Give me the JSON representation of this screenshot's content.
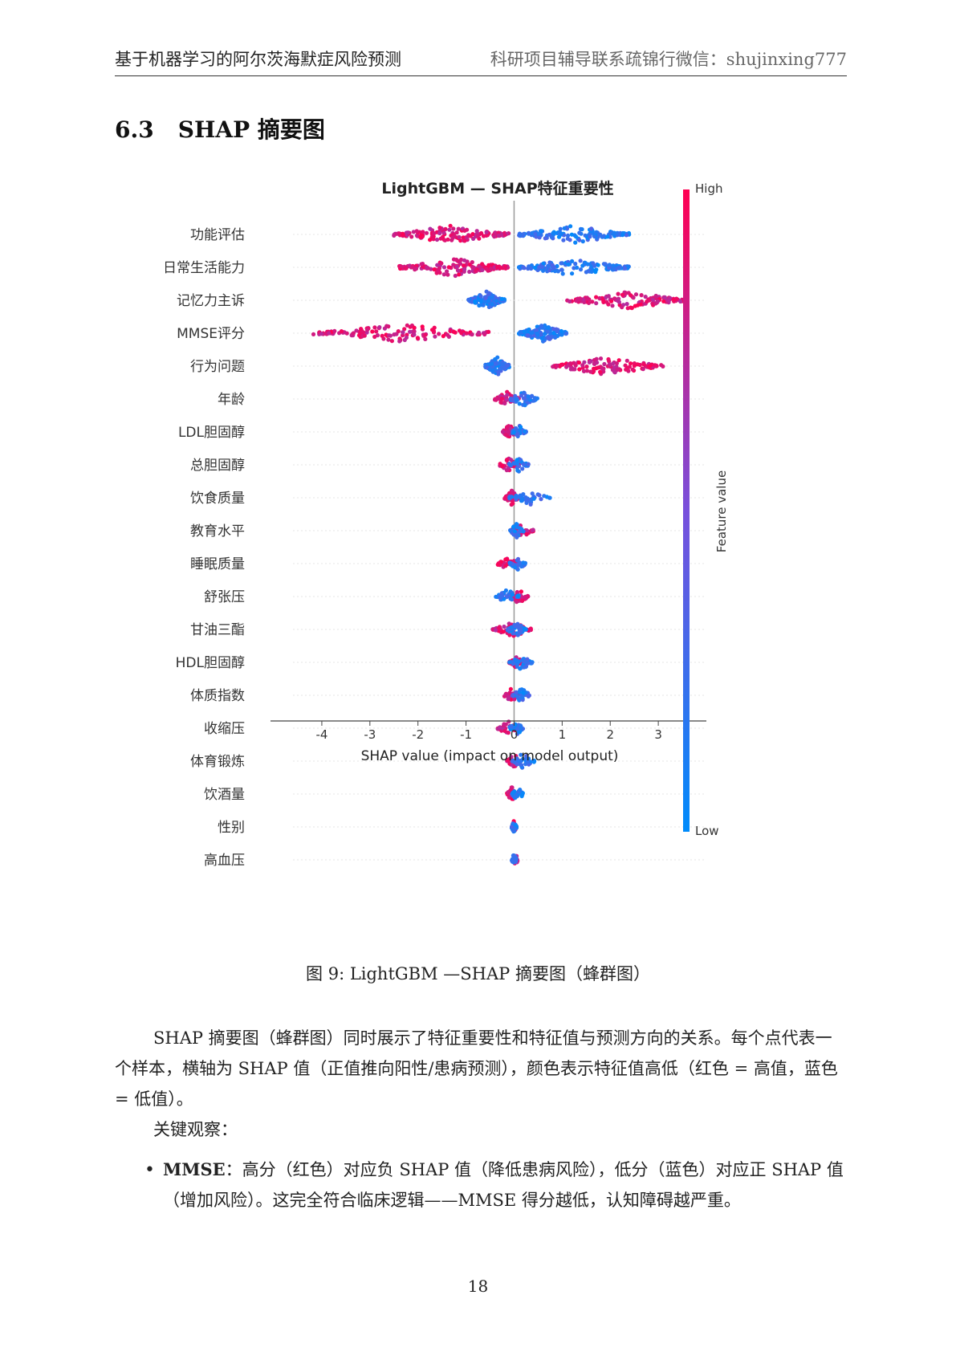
{
  "header": {
    "left": "基于机器学习的阿尔茨海默症风险预测",
    "right": "科研项目辅导联系疏锦行微信：shujinxing777"
  },
  "section": {
    "number": "6.3",
    "title": "SHAP 摘要图"
  },
  "chart_data": {
    "type": "scatter",
    "subtype": "beeswarm",
    "title": "LightGBM — SHAP特征重要性",
    "xlabel": "SHAP value (impact on model output)",
    "xlim": [
      -4.6,
      4.0
    ],
    "xticks": [
      -4,
      -3,
      -2,
      -1,
      0,
      1,
      2,
      3
    ],
    "features": [
      "功能评估",
      "日常生活能力",
      "记忆力主诉",
      "MMSE评分",
      "行为问题",
      "年龄",
      "LDL胆固醇",
      "总胆固醇",
      "饮食质量",
      "教育水平",
      "睡眠质量",
      "舒张压",
      "甘油三酯",
      "HDL胆固醇",
      "体质指数",
      "收缩压",
      "体育锻炼",
      "饮酒量",
      "性别",
      "高血压"
    ],
    "feature_ranges": [
      {
        "low_color_range": [
          0.1,
          2.4
        ],
        "high_color_range": [
          -2.5,
          -0.1
        ]
      },
      {
        "low_color_range": [
          0.1,
          2.4
        ],
        "high_color_range": [
          -2.4,
          -0.1
        ]
      },
      {
        "low_color_range": [
          -0.95,
          -0.2
        ],
        "high_color_range": [
          1.1,
          3.6
        ]
      },
      {
        "low_color_range": [
          0.1,
          1.1
        ],
        "high_color_range": [
          -4.2,
          -0.5
        ]
      },
      {
        "low_color_range": [
          -0.6,
          -0.1
        ],
        "high_color_range": [
          0.75,
          3.1
        ]
      },
      {
        "low_color_range": [
          -0.1,
          0.5
        ],
        "high_color_range": [
          -0.4,
          0.1
        ]
      },
      {
        "low_color_range": [
          -0.05,
          0.25
        ],
        "high_color_range": [
          -0.25,
          0.05
        ]
      },
      {
        "low_color_range": [
          -0.1,
          0.3
        ],
        "high_color_range": [
          -0.3,
          0.1
        ]
      },
      {
        "low_color_range": [
          -0.1,
          0.75
        ],
        "high_color_range": [
          -0.2,
          0.1
        ]
      },
      {
        "low_color_range": [
          -0.1,
          0.2
        ],
        "high_color_range": [
          -0.05,
          0.4
        ]
      },
      {
        "low_color_range": [
          -0.1,
          0.25
        ],
        "high_color_range": [
          -0.35,
          0.1
        ]
      },
      {
        "low_color_range": [
          -0.4,
          0.1
        ],
        "high_color_range": [
          -0.1,
          0.3
        ]
      },
      {
        "low_color_range": [
          -0.15,
          0.25
        ],
        "high_color_range": [
          -0.45,
          0.4
        ]
      },
      {
        "low_color_range": [
          -0.1,
          0.4
        ],
        "high_color_range": [
          -0.1,
          0.25
        ]
      },
      {
        "low_color_range": [
          -0.05,
          0.35
        ],
        "high_color_range": [
          -0.2,
          0.1
        ]
      },
      {
        "low_color_range": [
          -0.1,
          0.2
        ],
        "high_color_range": [
          -0.35,
          0.1
        ]
      },
      {
        "low_color_range": [
          -0.1,
          0.45
        ],
        "high_color_range": [
          -0.15,
          0.15
        ]
      },
      {
        "low_color_range": [
          -0.05,
          0.2
        ],
        "high_color_range": [
          -0.15,
          0.05
        ]
      },
      {
        "low_color_range": [
          -0.05,
          0.05
        ],
        "high_color_range": [
          -0.05,
          0.05
        ]
      },
      {
        "low_color_range": [
          -0.05,
          0.05
        ],
        "high_color_range": [
          -0.02,
          0.08
        ]
      }
    ],
    "colorbar": {
      "label": "Feature value",
      "high": "High",
      "low": "Low",
      "high_color": "#ff0052",
      "low_color": "#008bfb"
    }
  },
  "caption": "图 9: LightGBM —SHAP 摘要图（蜂群图）",
  "paragraph1": "SHAP 摘要图（蜂群图）同时展示了特征重要性和特征值与预测方向的关系。每个点代表一个样本，横轴为 SHAP 值（正值推向阳性/患病预测），颜色表示特征值高低（红色 = 高值，蓝色 = 低值）。",
  "paragraph2": "关键观察：",
  "bullet1": {
    "term": "MMSE",
    "text": "：高分（红色）对应负 SHAP 值（降低患病风险），低分（蓝色）对应正 SHAP 值（增加风险）。这完全符合临床逻辑——MMSE 得分越低，认知障碍越严重。"
  },
  "page_number": "18"
}
